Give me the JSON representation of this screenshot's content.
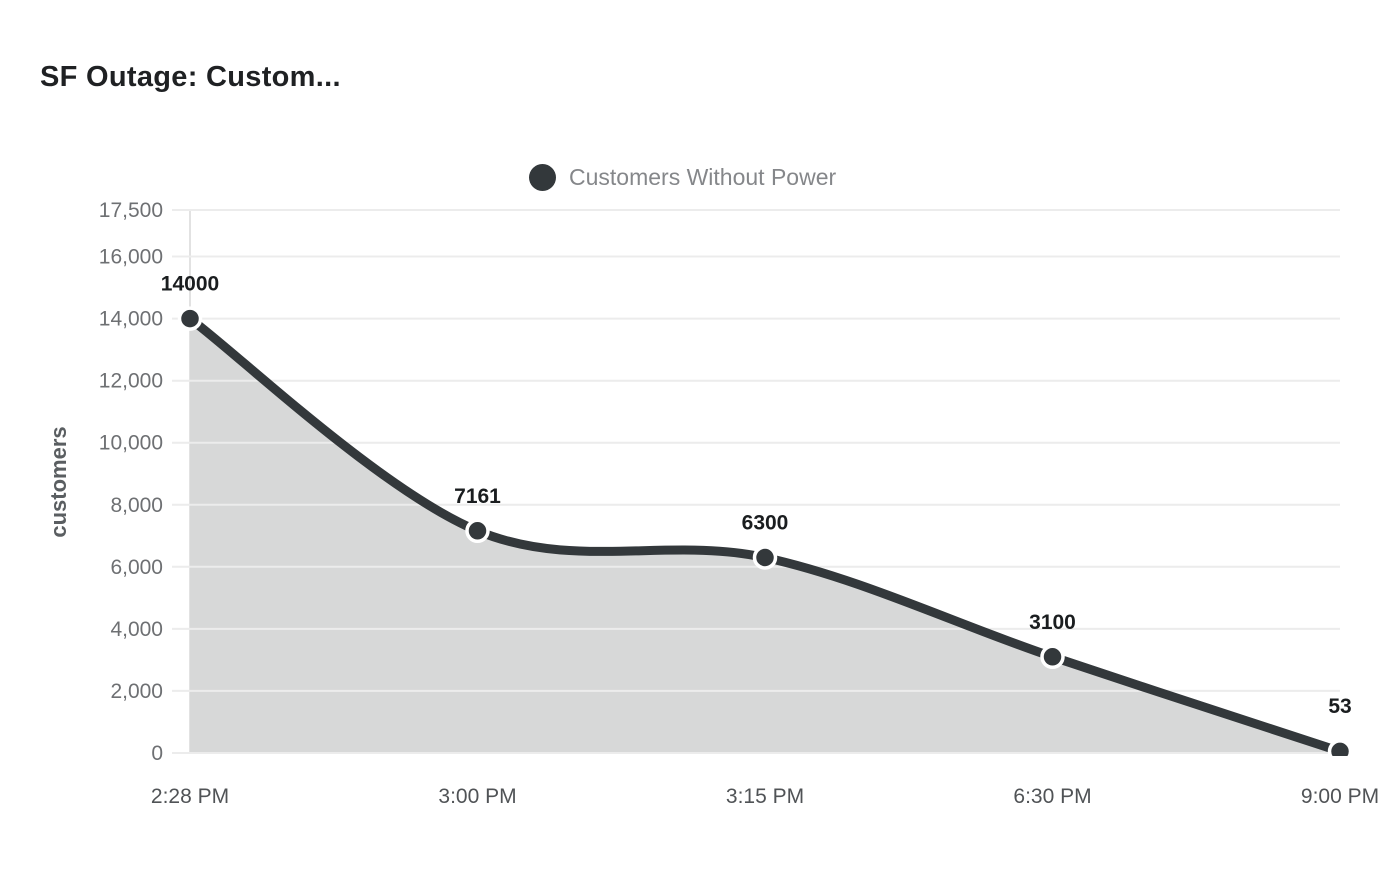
{
  "header": {
    "title": "SF Outage: Custom..."
  },
  "legend": {
    "series_label": "Customers Without Power",
    "marker_color": "#33383b"
  },
  "chart_data": {
    "type": "area",
    "title": "SF Outage: Custom...",
    "categories": [
      "2:28 PM",
      "3:00 PM",
      "3:15 PM",
      "6:30 PM",
      "9:00 PM"
    ],
    "series": [
      {
        "name": "Customers Without Power",
        "values": [
          14000,
          7161,
          6300,
          3100,
          53
        ]
      }
    ],
    "data_labels": [
      "14000",
      "7161",
      "6300",
      "3100",
      "53"
    ],
    "xlabel": "",
    "ylabel": "customers",
    "ylim": [
      0,
      17500
    ],
    "yticks": [
      0,
      2000,
      4000,
      6000,
      8000,
      10000,
      12000,
      14000,
      16000,
      17500
    ],
    "grid": "horizontal",
    "legend_position": "top-center",
    "colors": {
      "line": "#33383b",
      "area": "#d7d8d8",
      "grid": "#ececec",
      "axis_line": "#e2e2e2",
      "y_tick_label": "#6e7073",
      "x_tick_label": "#505356",
      "data_label": "#1a1d1f",
      "y_axis_title": "#5a5e61",
      "point_ring": "#ffffff"
    }
  }
}
